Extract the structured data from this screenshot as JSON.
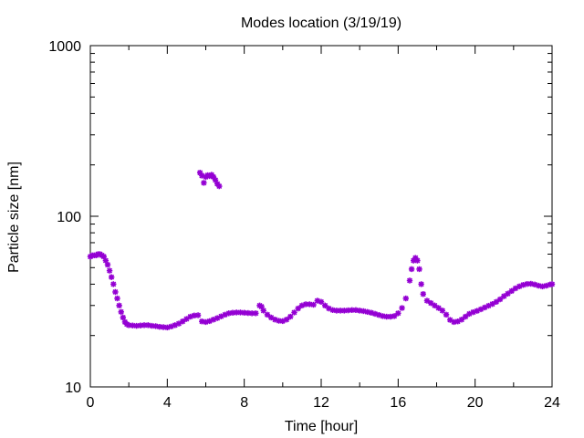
{
  "chart_data": {
    "type": "scatter",
    "title": "Modes location (3/19/19)",
    "xlabel": "Time [hour]",
    "ylabel": "Particle size [nm]",
    "xlim": [
      0,
      24
    ],
    "ylim": [
      10,
      1000
    ],
    "yscale": "log",
    "grid": false,
    "legend": "none",
    "x_ticks": [
      0,
      4,
      8,
      12,
      16,
      20,
      24
    ],
    "x_tick_labels": [
      "0",
      "4",
      "8",
      "12",
      "16",
      "20",
      "24"
    ],
    "y_ticks": [
      10,
      100,
      1000
    ],
    "y_tick_labels": [
      "10",
      "100",
      "1000"
    ],
    "marker": "asterisk",
    "color": "#9400d3",
    "series": [
      {
        "values": [
          [
            0.0,
            58
          ],
          [
            0.1,
            59
          ],
          [
            0.2,
            59
          ],
          [
            0.3,
            59
          ],
          [
            0.4,
            60
          ],
          [
            0.5,
            60
          ],
          [
            0.6,
            59
          ],
          [
            0.7,
            58
          ],
          [
            0.8,
            55
          ],
          [
            0.9,
            52
          ],
          [
            1.0,
            48
          ],
          [
            1.1,
            44
          ],
          [
            1.2,
            40
          ],
          [
            1.3,
            36
          ],
          [
            1.4,
            33
          ],
          [
            1.5,
            30
          ],
          [
            1.6,
            27.5
          ],
          [
            1.7,
            25.5
          ],
          [
            1.8,
            24
          ],
          [
            1.9,
            23.3
          ],
          [
            2.0,
            23.0
          ],
          [
            2.2,
            22.9
          ],
          [
            2.4,
            22.8
          ],
          [
            2.6,
            22.9
          ],
          [
            2.8,
            23.0
          ],
          [
            3.0,
            23.0
          ],
          [
            3.2,
            22.8
          ],
          [
            3.4,
            22.7
          ],
          [
            3.6,
            22.5
          ],
          [
            3.8,
            22.4
          ],
          [
            4.0,
            22.3
          ],
          [
            4.2,
            22.6
          ],
          [
            4.4,
            23.0
          ],
          [
            4.6,
            23.5
          ],
          [
            4.8,
            24.2
          ],
          [
            5.0,
            25.0
          ],
          [
            5.2,
            25.8
          ],
          [
            5.4,
            26.2
          ],
          [
            5.6,
            26.3
          ],
          [
            5.8,
            24.2
          ],
          [
            6.0,
            24.0
          ],
          [
            6.2,
            24.3
          ],
          [
            6.4,
            24.8
          ],
          [
            6.6,
            25.3
          ],
          [
            6.8,
            25.9
          ],
          [
            7.0,
            26.5
          ],
          [
            7.2,
            27.0
          ],
          [
            7.4,
            27.2
          ],
          [
            7.6,
            27.3
          ],
          [
            7.8,
            27.3
          ],
          [
            8.0,
            27.2
          ],
          [
            8.2,
            27.1
          ],
          [
            8.4,
            27.0
          ],
          [
            8.6,
            27.0
          ],
          [
            8.8,
            30.0
          ],
          [
            8.9,
            29.5
          ],
          [
            9.0,
            28.0
          ],
          [
            9.2,
            26.5
          ],
          [
            9.4,
            25.5
          ],
          [
            9.6,
            24.8
          ],
          [
            9.8,
            24.4
          ],
          [
            10.0,
            24.3
          ],
          [
            10.2,
            24.8
          ],
          [
            10.4,
            25.8
          ],
          [
            10.6,
            27.3
          ],
          [
            10.8,
            28.8
          ],
          [
            11.0,
            30.0
          ],
          [
            11.2,
            30.5
          ],
          [
            11.4,
            30.5
          ],
          [
            11.6,
            30.3
          ],
          [
            11.8,
            32.0
          ],
          [
            12.0,
            31.5
          ],
          [
            12.2,
            30.0
          ],
          [
            12.4,
            28.8
          ],
          [
            12.6,
            28.2
          ],
          [
            12.8,
            28.0
          ],
          [
            13.0,
            28.0
          ],
          [
            13.2,
            28.0
          ],
          [
            13.4,
            28.1
          ],
          [
            13.6,
            28.2
          ],
          [
            13.8,
            28.2
          ],
          [
            14.0,
            28.0
          ],
          [
            14.2,
            27.8
          ],
          [
            14.4,
            27.5
          ],
          [
            14.6,
            27.2
          ],
          [
            14.8,
            26.8
          ],
          [
            15.0,
            26.4
          ],
          [
            15.2,
            26.0
          ],
          [
            15.4,
            25.8
          ],
          [
            15.6,
            25.8
          ],
          [
            15.8,
            26.0
          ],
          [
            16.0,
            27.0
          ],
          [
            16.2,
            29.0
          ],
          [
            16.4,
            33.0
          ],
          [
            16.6,
            42.0
          ],
          [
            16.7,
            49.0
          ],
          [
            16.8,
            55.0
          ],
          [
            16.9,
            57.0
          ],
          [
            17.0,
            55.0
          ],
          [
            17.1,
            49.0
          ],
          [
            17.2,
            40.0
          ],
          [
            17.3,
            35.0
          ],
          [
            17.5,
            32.0
          ],
          [
            17.7,
            31.0
          ],
          [
            17.9,
            30.0
          ],
          [
            18.1,
            29.0
          ],
          [
            18.3,
            28.0
          ],
          [
            18.5,
            26.5
          ],
          [
            18.7,
            24.7
          ],
          [
            18.9,
            24.0
          ],
          [
            19.1,
            24.2
          ],
          [
            19.3,
            24.8
          ],
          [
            19.5,
            25.8
          ],
          [
            19.7,
            26.8
          ],
          [
            19.9,
            27.4
          ],
          [
            20.1,
            27.9
          ],
          [
            20.3,
            28.5
          ],
          [
            20.5,
            29.2
          ],
          [
            20.7,
            29.9
          ],
          [
            20.9,
            30.6
          ],
          [
            21.1,
            31.5
          ],
          [
            21.3,
            32.6
          ],
          [
            21.5,
            34.0
          ],
          [
            21.7,
            35.2
          ],
          [
            21.9,
            36.5
          ],
          [
            22.1,
            37.8
          ],
          [
            22.3,
            38.8
          ],
          [
            22.5,
            39.6
          ],
          [
            22.7,
            40.1
          ],
          [
            22.9,
            40.2
          ],
          [
            23.1,
            39.8
          ],
          [
            23.3,
            39.2
          ],
          [
            23.5,
            38.8
          ],
          [
            23.7,
            39.2
          ],
          [
            23.9,
            39.8
          ],
          [
            24.0,
            40.0
          ]
        ]
      },
      {
        "values": [
          [
            5.7,
            180
          ],
          [
            5.8,
            173
          ],
          [
            5.9,
            157
          ],
          [
            6.0,
            170
          ],
          [
            6.1,
            174
          ],
          [
            6.2,
            172
          ],
          [
            6.3,
            175
          ],
          [
            6.4,
            170
          ],
          [
            6.5,
            163
          ],
          [
            6.6,
            155
          ],
          [
            6.7,
            150
          ]
        ]
      }
    ]
  }
}
